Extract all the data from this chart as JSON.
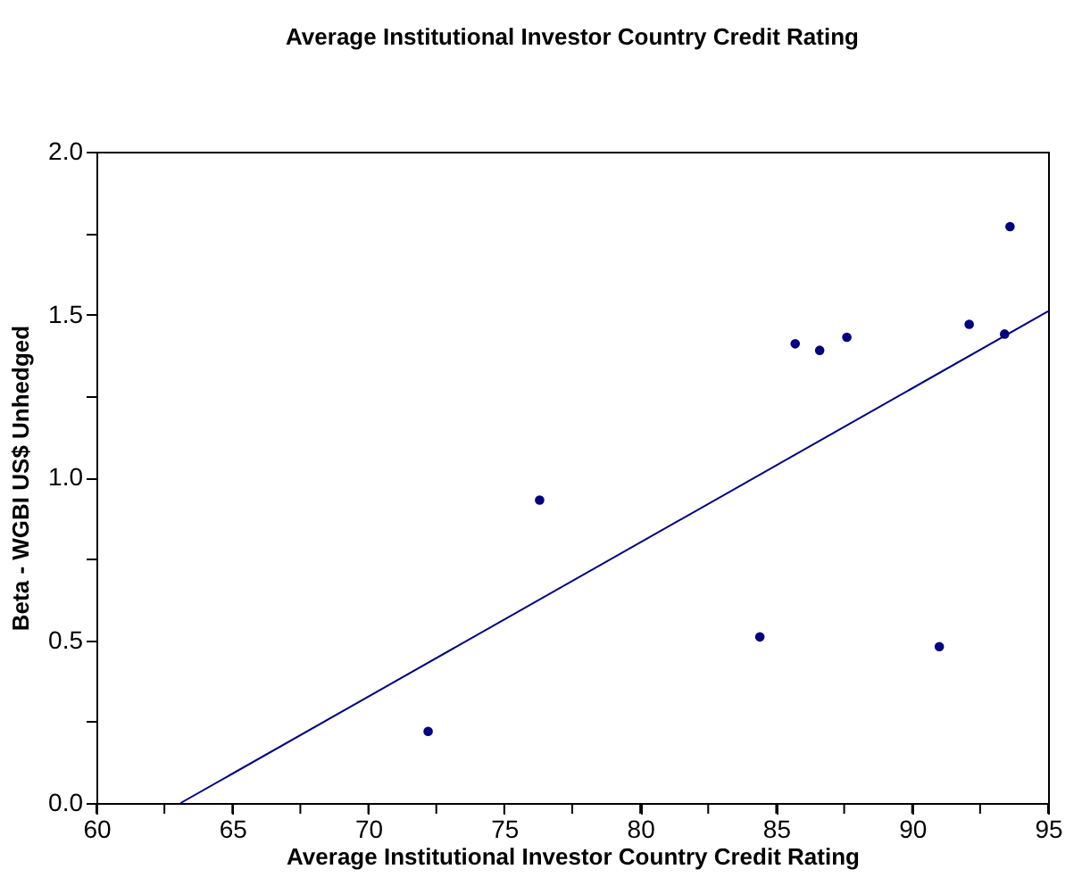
{
  "chart_data": {
    "type": "scatter",
    "title": "Average Institutional Investor Country Credit Rating",
    "xlabel": "Average Institutional Investor Country Credit Rating",
    "ylabel": "Beta - WGBI US$ Unhedged",
    "series": [
      {
        "marker": "circle",
        "color": "#000080",
        "x": [
          72.2,
          76.3,
          84.4,
          85.7,
          86.6,
          87.6,
          91.0,
          92.1,
          93.4,
          93.6
        ],
        "values": [
          0.22,
          0.93,
          0.51,
          1.41,
          1.39,
          1.43,
          0.48,
          1.47,
          1.44,
          1.77
        ]
      },
      {
        "type": "line",
        "marker": "none",
        "color": "#000080",
        "x": [
          63.1,
          95
        ],
        "values": [
          0,
          1.51
        ]
      }
    ],
    "xlim": [
      60,
      95
    ],
    "ylim": [
      0,
      2.0
    ],
    "xticks": [
      60,
      {
        "value": 62.5,
        "label": null
      },
      65,
      {
        "value": 67.5,
        "label": null
      },
      70,
      {
        "value": 72.5,
        "label": null
      },
      75,
      {
        "value": 77.5,
        "label": null
      },
      80,
      {
        "value": 82.5,
        "label": null
      },
      85,
      {
        "value": 87.5,
        "label": null
      },
      90,
      {
        "value": 92.5,
        "label": null
      },
      95
    ],
    "yticks": [
      {
        "value": 0,
        "label": "0.0"
      },
      {
        "value": 0.25,
        "label": null
      },
      {
        "value": 0.5,
        "label": "0.5"
      },
      {
        "value": 0.75,
        "label": null
      },
      {
        "value": 1.0,
        "label": "1.0"
      },
      {
        "value": 1.25,
        "label": null
      },
      {
        "value": 1.5,
        "label": "1.5"
      },
      {
        "value": 1.75,
        "label": null
      },
      {
        "value": 2.0,
        "label": "2.0"
      }
    ],
    "grid": false
  }
}
